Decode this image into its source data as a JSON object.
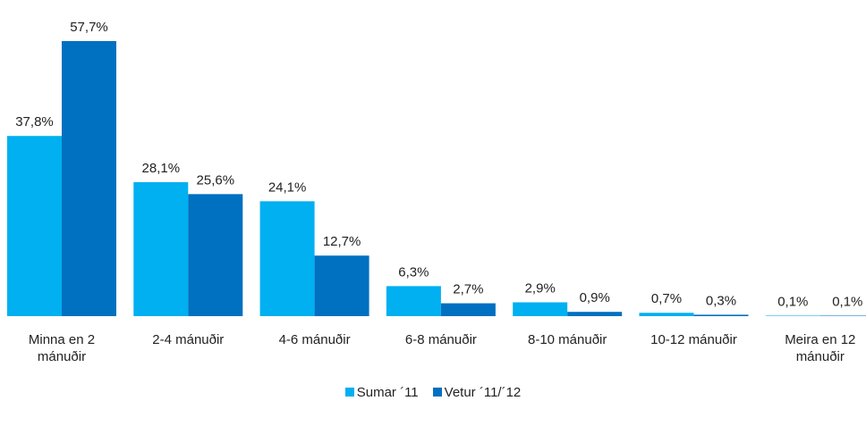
{
  "chart_data": {
    "type": "bar",
    "categories": [
      "Minna en 2 mánuðir",
      "2-4 mánuðir",
      "4-6 mánuðir",
      "6-8 mánuðir",
      "8-10 mánuðir",
      "10-12 mánuðir",
      "Meira en 12 mánuðir"
    ],
    "series": [
      {
        "name": "Sumar ´11",
        "color": "#00b0f0",
        "values": [
          37.8,
          28.1,
          24.1,
          6.3,
          2.9,
          0.7,
          0.1
        ],
        "value_labels": [
          "37,8%",
          "28,1%",
          "24,1%",
          "6,3%",
          "2,9%",
          "0,7%",
          "0,1%"
        ]
      },
      {
        "name": "Vetur ´11/´12",
        "color": "#0070c0",
        "values": [
          57.7,
          25.6,
          12.7,
          2.7,
          0.9,
          0.3,
          0.1
        ],
        "value_labels": [
          "57,7%",
          "25,6%",
          "12,7%",
          "2,7%",
          "0,9%",
          "0,3%",
          "0,1%"
        ]
      }
    ],
    "legend": "bottom"
  }
}
